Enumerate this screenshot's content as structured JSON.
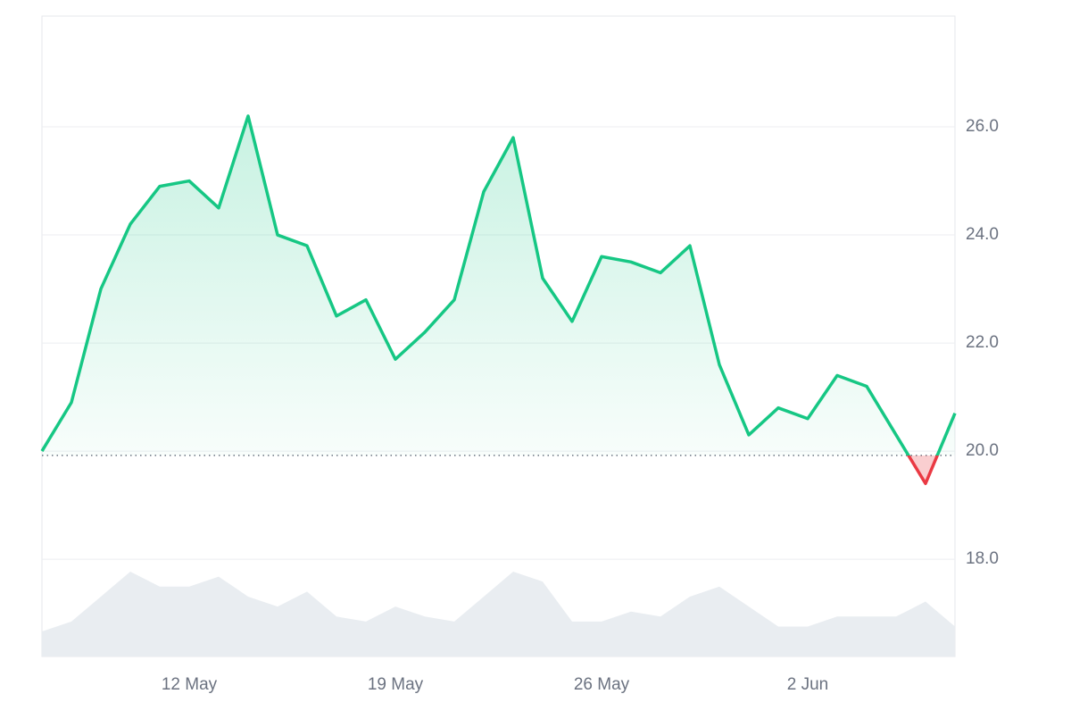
{
  "chart_data": {
    "type": "line",
    "x": [
      "7 May",
      "8 May",
      "9 May",
      "10 May",
      "11 May",
      "12 May",
      "13 May",
      "14 May",
      "15 May",
      "16 May",
      "17 May",
      "18 May",
      "19 May",
      "20 May",
      "21 May",
      "22 May",
      "23 May",
      "24 May",
      "25 May",
      "26 May",
      "27 May",
      "28 May",
      "29 May",
      "30 May",
      "31 May",
      "1 Jun",
      "2 Jun",
      "3 Jun",
      "4 Jun",
      "5 Jun",
      "6 Jun",
      "7 Jun"
    ],
    "values": [
      20.0,
      20.9,
      23.0,
      24.2,
      24.9,
      25.0,
      24.5,
      26.2,
      24.0,
      23.8,
      22.5,
      22.8,
      21.7,
      22.2,
      22.8,
      24.8,
      25.8,
      23.2,
      22.4,
      23.6,
      23.5,
      23.3,
      23.8,
      21.6,
      20.3,
      20.8,
      20.6,
      21.4,
      21.2,
      20.3,
      19.4,
      20.7
    ],
    "volume": [
      25,
      35,
      60,
      85,
      70,
      70,
      80,
      60,
      50,
      65,
      40,
      35,
      50,
      40,
      35,
      60,
      85,
      75,
      35,
      35,
      45,
      40,
      60,
      70,
      50,
      30,
      30,
      40,
      40,
      40,
      55,
      30
    ],
    "baseline": 19.92,
    "up_color": "#16c784",
    "down_color": "#ea3943",
    "volume_color": "#e9edf1",
    "ylim": [
      16.2,
      28.05
    ],
    "yticks": [
      {
        "value": 18,
        "label": "18.0"
      },
      {
        "value": 20,
        "label": "20.0"
      },
      {
        "value": 22,
        "label": "22.0"
      },
      {
        "value": 24,
        "label": "24.0"
      },
      {
        "value": 26,
        "label": "26.0"
      }
    ],
    "xticks": [
      "12 May",
      "19 May",
      "26 May",
      "2 Jun"
    ],
    "grid": true
  }
}
